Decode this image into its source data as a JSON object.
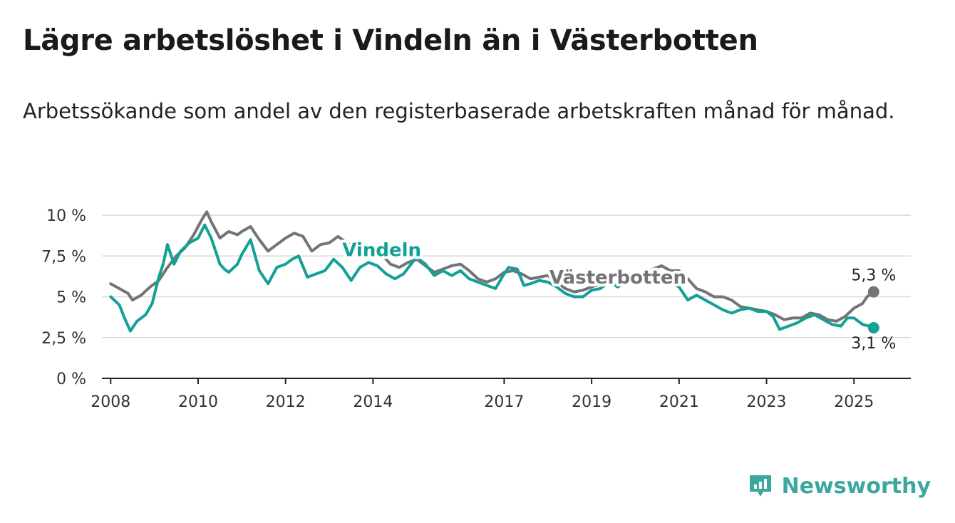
{
  "header": {
    "title": "Lägre arbetslöshet i Vindeln än i Västerbotten",
    "subtitle": "Arbetssökande som andel av den registerbaserade arbetskraften månad för månad."
  },
  "brand": {
    "name": "Newsworthy",
    "icon": "bar-chart-icon",
    "color": "#3ba8a0"
  },
  "chart_data": {
    "type": "line",
    "title": "Lägre arbetslöshet i Vindeln än i Västerbotten",
    "subtitle": "Arbetssökande som andel av den registerbaserade arbetskraften månad för månad.",
    "xlabel": "",
    "ylabel": "",
    "ylim": [
      0,
      10
    ],
    "xlim": [
      2007.8,
      2026.3
    ],
    "grid": true,
    "legend": "inline labels",
    "y_ticks": [
      {
        "value": 0,
        "label": "0 %"
      },
      {
        "value": 2.5,
        "label": "2,5 %"
      },
      {
        "value": 5,
        "label": "5 %"
      },
      {
        "value": 7.5,
        "label": "7,5 %"
      },
      {
        "value": 10,
        "label": "10 %"
      }
    ],
    "x_ticks": [
      {
        "value": 2008,
        "label": "2008"
      },
      {
        "value": 2010,
        "label": "2010"
      },
      {
        "value": 2012,
        "label": "2012"
      },
      {
        "value": 2014,
        "label": "2014"
      },
      {
        "value": 2017,
        "label": "2017"
      },
      {
        "value": 2019,
        "label": "2019"
      },
      {
        "value": 2021,
        "label": "2021"
      },
      {
        "value": 2023,
        "label": "2023"
      },
      {
        "value": 2025,
        "label": "2025"
      }
    ],
    "series": [
      {
        "name": "Västerbotten",
        "color": "#747478",
        "end_label": "5,3 %",
        "points": [
          [
            2008.0,
            5.8
          ],
          [
            2008.2,
            5.5
          ],
          [
            2008.4,
            5.2
          ],
          [
            2008.5,
            4.8
          ],
          [
            2008.7,
            5.1
          ],
          [
            2008.9,
            5.6
          ],
          [
            2009.1,
            6.0
          ],
          [
            2009.3,
            6.8
          ],
          [
            2009.5,
            7.5
          ],
          [
            2009.7,
            8.0
          ],
          [
            2009.9,
            8.8
          ],
          [
            2010.0,
            9.3
          ],
          [
            2010.1,
            9.8
          ],
          [
            2010.2,
            10.2
          ],
          [
            2010.3,
            9.6
          ],
          [
            2010.5,
            8.6
          ],
          [
            2010.7,
            9.0
          ],
          [
            2010.9,
            8.8
          ],
          [
            2011.0,
            9.0
          ],
          [
            2011.2,
            9.3
          ],
          [
            2011.4,
            8.5
          ],
          [
            2011.6,
            7.8
          ],
          [
            2011.8,
            8.2
          ],
          [
            2012.0,
            8.6
          ],
          [
            2012.2,
            8.9
          ],
          [
            2012.4,
            8.7
          ],
          [
            2012.6,
            7.8
          ],
          [
            2012.8,
            8.2
          ],
          [
            2013.0,
            8.3
          ],
          [
            2013.2,
            8.7
          ],
          [
            2013.4,
            8.3
          ],
          [
            2013.6,
            8.0
          ],
          [
            2013.8,
            7.8
          ],
          [
            2014.0,
            8.1
          ],
          [
            2014.2,
            7.6
          ],
          [
            2014.4,
            7.0
          ],
          [
            2014.6,
            6.8
          ],
          [
            2014.8,
            7.1
          ],
          [
            2015.0,
            7.3
          ],
          [
            2015.2,
            6.9
          ],
          [
            2015.4,
            6.5
          ],
          [
            2015.6,
            6.7
          ],
          [
            2015.8,
            6.9
          ],
          [
            2016.0,
            7.0
          ],
          [
            2016.2,
            6.6
          ],
          [
            2016.4,
            6.1
          ],
          [
            2016.6,
            5.9
          ],
          [
            2016.8,
            6.1
          ],
          [
            2017.0,
            6.5
          ],
          [
            2017.2,
            6.6
          ],
          [
            2017.4,
            6.4
          ],
          [
            2017.6,
            6.1
          ],
          [
            2017.8,
            6.2
          ],
          [
            2018.0,
            6.3
          ],
          [
            2018.2,
            5.9
          ],
          [
            2018.4,
            5.5
          ],
          [
            2018.6,
            5.3
          ],
          [
            2018.8,
            5.4
          ],
          [
            2019.0,
            5.6
          ],
          [
            2019.2,
            5.8
          ],
          [
            2019.4,
            5.9
          ],
          [
            2019.6,
            5.7
          ],
          [
            2019.8,
            5.9
          ],
          [
            2020.0,
            6.0
          ],
          [
            2020.2,
            6.3
          ],
          [
            2020.4,
            6.7
          ],
          [
            2020.6,
            6.9
          ],
          [
            2020.8,
            6.6
          ],
          [
            2021.0,
            6.6
          ],
          [
            2021.2,
            6.1
          ],
          [
            2021.4,
            5.5
          ],
          [
            2021.6,
            5.3
          ],
          [
            2021.8,
            5.0
          ],
          [
            2022.0,
            5.0
          ],
          [
            2022.2,
            4.8
          ],
          [
            2022.4,
            4.4
          ],
          [
            2022.6,
            4.3
          ],
          [
            2022.8,
            4.2
          ],
          [
            2023.0,
            4.1
          ],
          [
            2023.2,
            3.9
          ],
          [
            2023.4,
            3.6
          ],
          [
            2023.6,
            3.7
          ],
          [
            2023.8,
            3.7
          ],
          [
            2024.0,
            4.0
          ],
          [
            2024.2,
            3.9
          ],
          [
            2024.4,
            3.6
          ],
          [
            2024.6,
            3.5
          ],
          [
            2024.8,
            3.8
          ],
          [
            2025.0,
            4.3
          ],
          [
            2025.2,
            4.6
          ],
          [
            2025.3,
            5.0
          ],
          [
            2025.45,
            5.3
          ]
        ]
      },
      {
        "name": "Vindeln",
        "color": "#12a194",
        "end_label": "3,1 %",
        "points": [
          [
            2008.0,
            5.0
          ],
          [
            2008.2,
            4.5
          ],
          [
            2008.3,
            3.8
          ],
          [
            2008.45,
            2.9
          ],
          [
            2008.6,
            3.5
          ],
          [
            2008.8,
            3.9
          ],
          [
            2008.95,
            4.6
          ],
          [
            2009.1,
            6.2
          ],
          [
            2009.2,
            7.0
          ],
          [
            2009.3,
            8.2
          ],
          [
            2009.45,
            7.0
          ],
          [
            2009.6,
            7.8
          ],
          [
            2009.8,
            8.3
          ],
          [
            2010.0,
            8.6
          ],
          [
            2010.15,
            9.4
          ],
          [
            2010.3,
            8.6
          ],
          [
            2010.5,
            7.0
          ],
          [
            2010.6,
            6.7
          ],
          [
            2010.7,
            6.5
          ],
          [
            2010.9,
            7.0
          ],
          [
            2011.0,
            7.6
          ],
          [
            2011.2,
            8.5
          ],
          [
            2011.4,
            6.6
          ],
          [
            2011.6,
            5.8
          ],
          [
            2011.8,
            6.8
          ],
          [
            2012.0,
            7.0
          ],
          [
            2012.15,
            7.3
          ],
          [
            2012.3,
            7.5
          ],
          [
            2012.5,
            6.2
          ],
          [
            2012.7,
            6.4
          ],
          [
            2012.9,
            6.6
          ],
          [
            2013.1,
            7.3
          ],
          [
            2013.3,
            6.8
          ],
          [
            2013.5,
            6.0
          ],
          [
            2013.7,
            6.8
          ],
          [
            2013.9,
            7.1
          ],
          [
            2014.1,
            6.9
          ],
          [
            2014.3,
            6.4
          ],
          [
            2014.5,
            6.1
          ],
          [
            2014.7,
            6.4
          ],
          [
            2014.9,
            7.1
          ],
          [
            2015.0,
            7.4
          ],
          [
            2015.2,
            7.0
          ],
          [
            2015.4,
            6.3
          ],
          [
            2015.6,
            6.6
          ],
          [
            2015.8,
            6.3
          ],
          [
            2016.0,
            6.6
          ],
          [
            2016.2,
            6.1
          ],
          [
            2016.4,
            5.9
          ],
          [
            2016.6,
            5.7
          ],
          [
            2016.8,
            5.5
          ],
          [
            2017.0,
            6.4
          ],
          [
            2017.1,
            6.8
          ],
          [
            2017.3,
            6.7
          ],
          [
            2017.45,
            5.7
          ],
          [
            2017.6,
            5.8
          ],
          [
            2017.8,
            6.0
          ],
          [
            2018.0,
            5.9
          ],
          [
            2018.2,
            5.6
          ],
          [
            2018.4,
            5.2
          ],
          [
            2018.6,
            5.0
          ],
          [
            2018.8,
            5.0
          ],
          [
            2019.0,
            5.4
          ],
          [
            2019.2,
            5.5
          ],
          [
            2019.4,
            5.9
          ],
          [
            2019.6,
            5.6
          ],
          [
            2019.8,
            5.9
          ],
          [
            2020.0,
            6.0
          ],
          [
            2020.2,
            5.9
          ],
          [
            2020.4,
            6.0
          ],
          [
            2020.6,
            6.3
          ],
          [
            2020.8,
            5.9
          ],
          [
            2021.0,
            5.6
          ],
          [
            2021.2,
            4.8
          ],
          [
            2021.4,
            5.1
          ],
          [
            2021.6,
            4.8
          ],
          [
            2021.8,
            4.5
          ],
          [
            2022.0,
            4.2
          ],
          [
            2022.2,
            4.0
          ],
          [
            2022.4,
            4.2
          ],
          [
            2022.6,
            4.3
          ],
          [
            2022.8,
            4.1
          ],
          [
            2023.0,
            4.1
          ],
          [
            2023.15,
            3.8
          ],
          [
            2023.3,
            3.0
          ],
          [
            2023.5,
            3.2
          ],
          [
            2023.7,
            3.4
          ],
          [
            2023.9,
            3.7
          ],
          [
            2024.1,
            3.9
          ],
          [
            2024.3,
            3.6
          ],
          [
            2024.5,
            3.3
          ],
          [
            2024.7,
            3.2
          ],
          [
            2024.85,
            3.7
          ],
          [
            2025.0,
            3.7
          ],
          [
            2025.2,
            3.3
          ],
          [
            2025.35,
            3.2
          ],
          [
            2025.45,
            3.1
          ]
        ]
      }
    ],
    "annotations": [
      {
        "series": "Vindeln",
        "text": "Vindeln",
        "at": [
          2014.2,
          7.5
        ]
      },
      {
        "series": "Västerbotten",
        "text": "Västerbotten",
        "at": [
          2019.6,
          5.8
        ]
      }
    ]
  }
}
